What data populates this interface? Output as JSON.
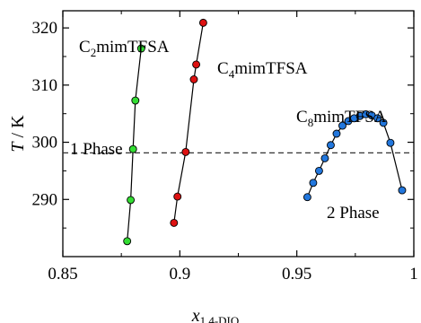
{
  "chart_data": {
    "type": "scatter",
    "xlabel": "x",
    "xlabel_sub": "1,4-DIO",
    "ylabel": "T",
    "ylabel_unit": " / K",
    "xlim": [
      0.85,
      1.0
    ],
    "ylim": [
      280,
      323
    ],
    "xticks": [
      0.85,
      0.9,
      0.95,
      1.0
    ],
    "xtick_labels": [
      "0.85",
      "0.9",
      "0.95",
      "1"
    ],
    "yticks": [
      290,
      300,
      310,
      320
    ],
    "ytick_labels": [
      "290",
      "300",
      "310",
      "320"
    ],
    "reference_line": {
      "y": 298.15,
      "style": "dashed"
    },
    "series": [
      {
        "name": "C2mimTFSA",
        "name_parts": [
          "C",
          "2",
          "mimTFSA"
        ],
        "color": "#33dd33",
        "x": [
          0.8775,
          0.879,
          0.88,
          0.881,
          0.8835
        ],
        "y": [
          282.7,
          289.9,
          298.8,
          307.3,
          316.4
        ]
      },
      {
        "name": "C4mimTFSA",
        "name_parts": [
          "C",
          "4",
          "mimTFSA"
        ],
        "color": "#dd1111",
        "x": [
          0.8975,
          0.899,
          0.9025,
          0.906,
          0.907,
          0.91
        ],
        "y": [
          285.9,
          290.5,
          298.3,
          311.0,
          313.6,
          320.9
        ]
      },
      {
        "name": "C8mimTFSA",
        "name_parts": [
          "C",
          "8",
          "mimTFSA"
        ],
        "color": "#2277dd",
        "x": [
          0.9545,
          0.957,
          0.9595,
          0.962,
          0.9645,
          0.967,
          0.9695,
          0.972,
          0.9745,
          0.977,
          0.9795,
          0.982,
          0.9845,
          0.987,
          0.99,
          0.995
        ],
        "y": [
          290.4,
          292.9,
          295.0,
          297.2,
          299.5,
          301.5,
          302.9,
          303.7,
          304.2,
          304.6,
          304.9,
          304.7,
          304.2,
          303.4,
          299.9,
          291.6
        ]
      }
    ],
    "annotations": [
      "1 Phase",
      "2 Phase"
    ]
  }
}
